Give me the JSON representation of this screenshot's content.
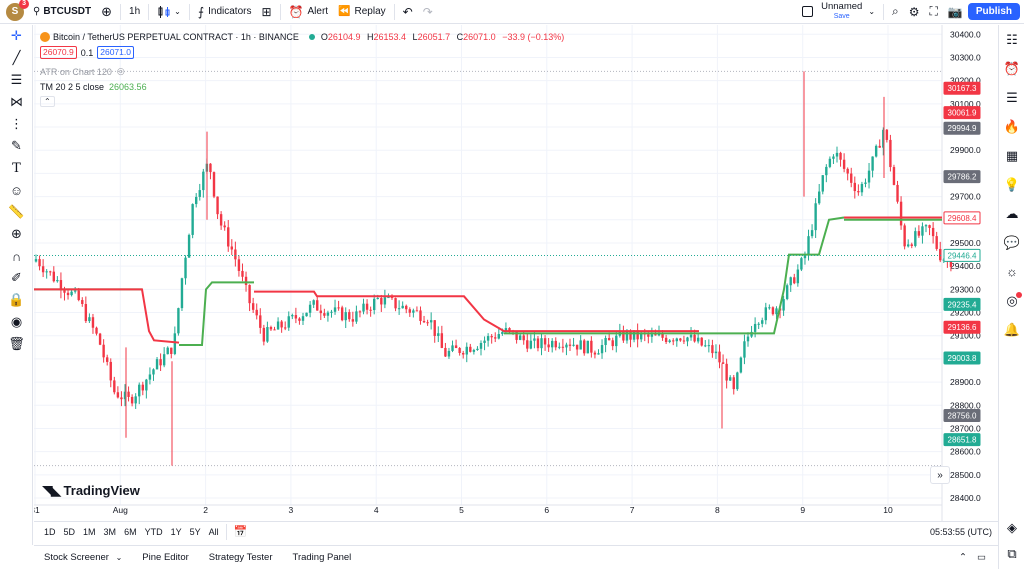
{
  "topbar": {
    "avatar_letter": "S",
    "notification_count": "3",
    "symbol": "BTCUSDT",
    "interval": "1h",
    "indicators_label": "Indicators",
    "alert_label": "Alert",
    "replay_label": "Replay",
    "layout_name": "Unnamed",
    "layout_status": "Save",
    "publish_label": "Publish"
  },
  "legend": {
    "pair": "Bitcoin / TetherUS PERPETUAL CONTRACT · 1h · BINANCE",
    "ohlc": {
      "o_label": "O",
      "o": "26104.9",
      "h_label": "H",
      "h": "26153.4",
      "l_label": "L",
      "l": "26051.7",
      "c_label": "C",
      "c": "26071.0",
      "change": "−33.9 (−0.13%)"
    },
    "bid": "26070.9",
    "spread": "0.1",
    "ask": "26071.0",
    "atr": "ATR on Chart 120",
    "tm_label": "TM 20 2 5 close",
    "tm_value": "26063.56"
  },
  "chart_data": {
    "type": "candlestick",
    "y_ticks": [
      "30400.0",
      "30300.0",
      "30200.0",
      "30100.0",
      "30000.0",
      "29900.0",
      "29800.0",
      "29700.0",
      "29600.0",
      "29500.0",
      "29400.0",
      "29300.0",
      "29200.0",
      "29100.0",
      "29000.0",
      "28900.0",
      "28800.0",
      "28700.0",
      "28600.0",
      "28500.0",
      "28400.0"
    ],
    "x_ticks": [
      "31",
      "Aug",
      "2",
      "3",
      "4",
      "5",
      "6",
      "7",
      "8",
      "9",
      "10"
    ],
    "price_labels": [
      {
        "text": "30167.3",
        "color": "#f23645"
      },
      {
        "text": "30061.9",
        "color": "#f23645"
      },
      {
        "text": "29994.9",
        "color": "#6a6d78"
      },
      {
        "text": "29786.2",
        "color": "#6a6d78"
      },
      {
        "text": "29608.4",
        "color": "#f23645",
        "outline": true
      },
      {
        "text": "29446.4",
        "color": "#22ab94",
        "outline": true
      },
      {
        "text": "29235.4",
        "color": "#22ab94"
      },
      {
        "text": "29136.6",
        "color": "#f23645"
      },
      {
        "text": "29003.8",
        "color": "#22ab94"
      },
      {
        "text": "28756.0",
        "color": "#6a6d78"
      },
      {
        "text": "28651.8",
        "color": "#22ab94"
      }
    ],
    "ylim": [
      28370,
      30440
    ],
    "up_color": "#22ab94",
    "down_color": "#f23645",
    "trend_up_color": "#4caf50",
    "trend_down_color": "#f23645"
  },
  "bottombar": {
    "ranges": [
      "1D",
      "5D",
      "1M",
      "3M",
      "6M",
      "YTD",
      "1Y",
      "5Y",
      "All"
    ],
    "time": "05:53:55 (UTC)"
  },
  "panelbar": {
    "tabs": [
      "Stock Screener",
      "Pine Editor",
      "Strategy Tester",
      "Trading Panel"
    ]
  },
  "branding": "TradingView"
}
